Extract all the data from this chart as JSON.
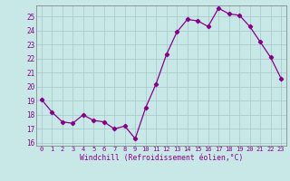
{
  "x": [
    0,
    1,
    2,
    3,
    4,
    5,
    6,
    7,
    8,
    9,
    10,
    11,
    12,
    13,
    14,
    15,
    16,
    17,
    18,
    19,
    20,
    21,
    22,
    23
  ],
  "y": [
    19.1,
    18.2,
    17.5,
    17.4,
    18.0,
    17.6,
    17.5,
    17.0,
    17.2,
    16.3,
    18.5,
    20.2,
    22.3,
    23.9,
    24.8,
    24.7,
    24.3,
    25.6,
    25.2,
    25.1,
    24.3,
    23.2,
    22.1,
    20.6
  ],
  "line_color": "#880088",
  "marker": "D",
  "marker_size": 2.2,
  "bg_color": "#c8e8e8",
  "grid_color": "#aacccc",
  "xlabel": "Windchill (Refroidissement éolien,°C)",
  "xlabel_color": "#880088",
  "tick_color": "#880088",
  "axis_color": "#888888",
  "ylim": [
    15.8,
    25.8
  ],
  "yticks": [
    16,
    17,
    18,
    19,
    20,
    21,
    22,
    23,
    24,
    25
  ],
  "xticks": [
    0,
    1,
    2,
    3,
    4,
    5,
    6,
    7,
    8,
    9,
    10,
    11,
    12,
    13,
    14,
    15,
    16,
    17,
    18,
    19,
    20,
    21,
    22,
    23
  ],
  "xtick_labels": [
    "0",
    "1",
    "2",
    "3",
    "4",
    "5",
    "6",
    "7",
    "8",
    "9",
    "10",
    "11",
    "12",
    "13",
    "14",
    "15",
    "16",
    "17",
    "18",
    "19",
    "20",
    "21",
    "22",
    "23"
  ]
}
